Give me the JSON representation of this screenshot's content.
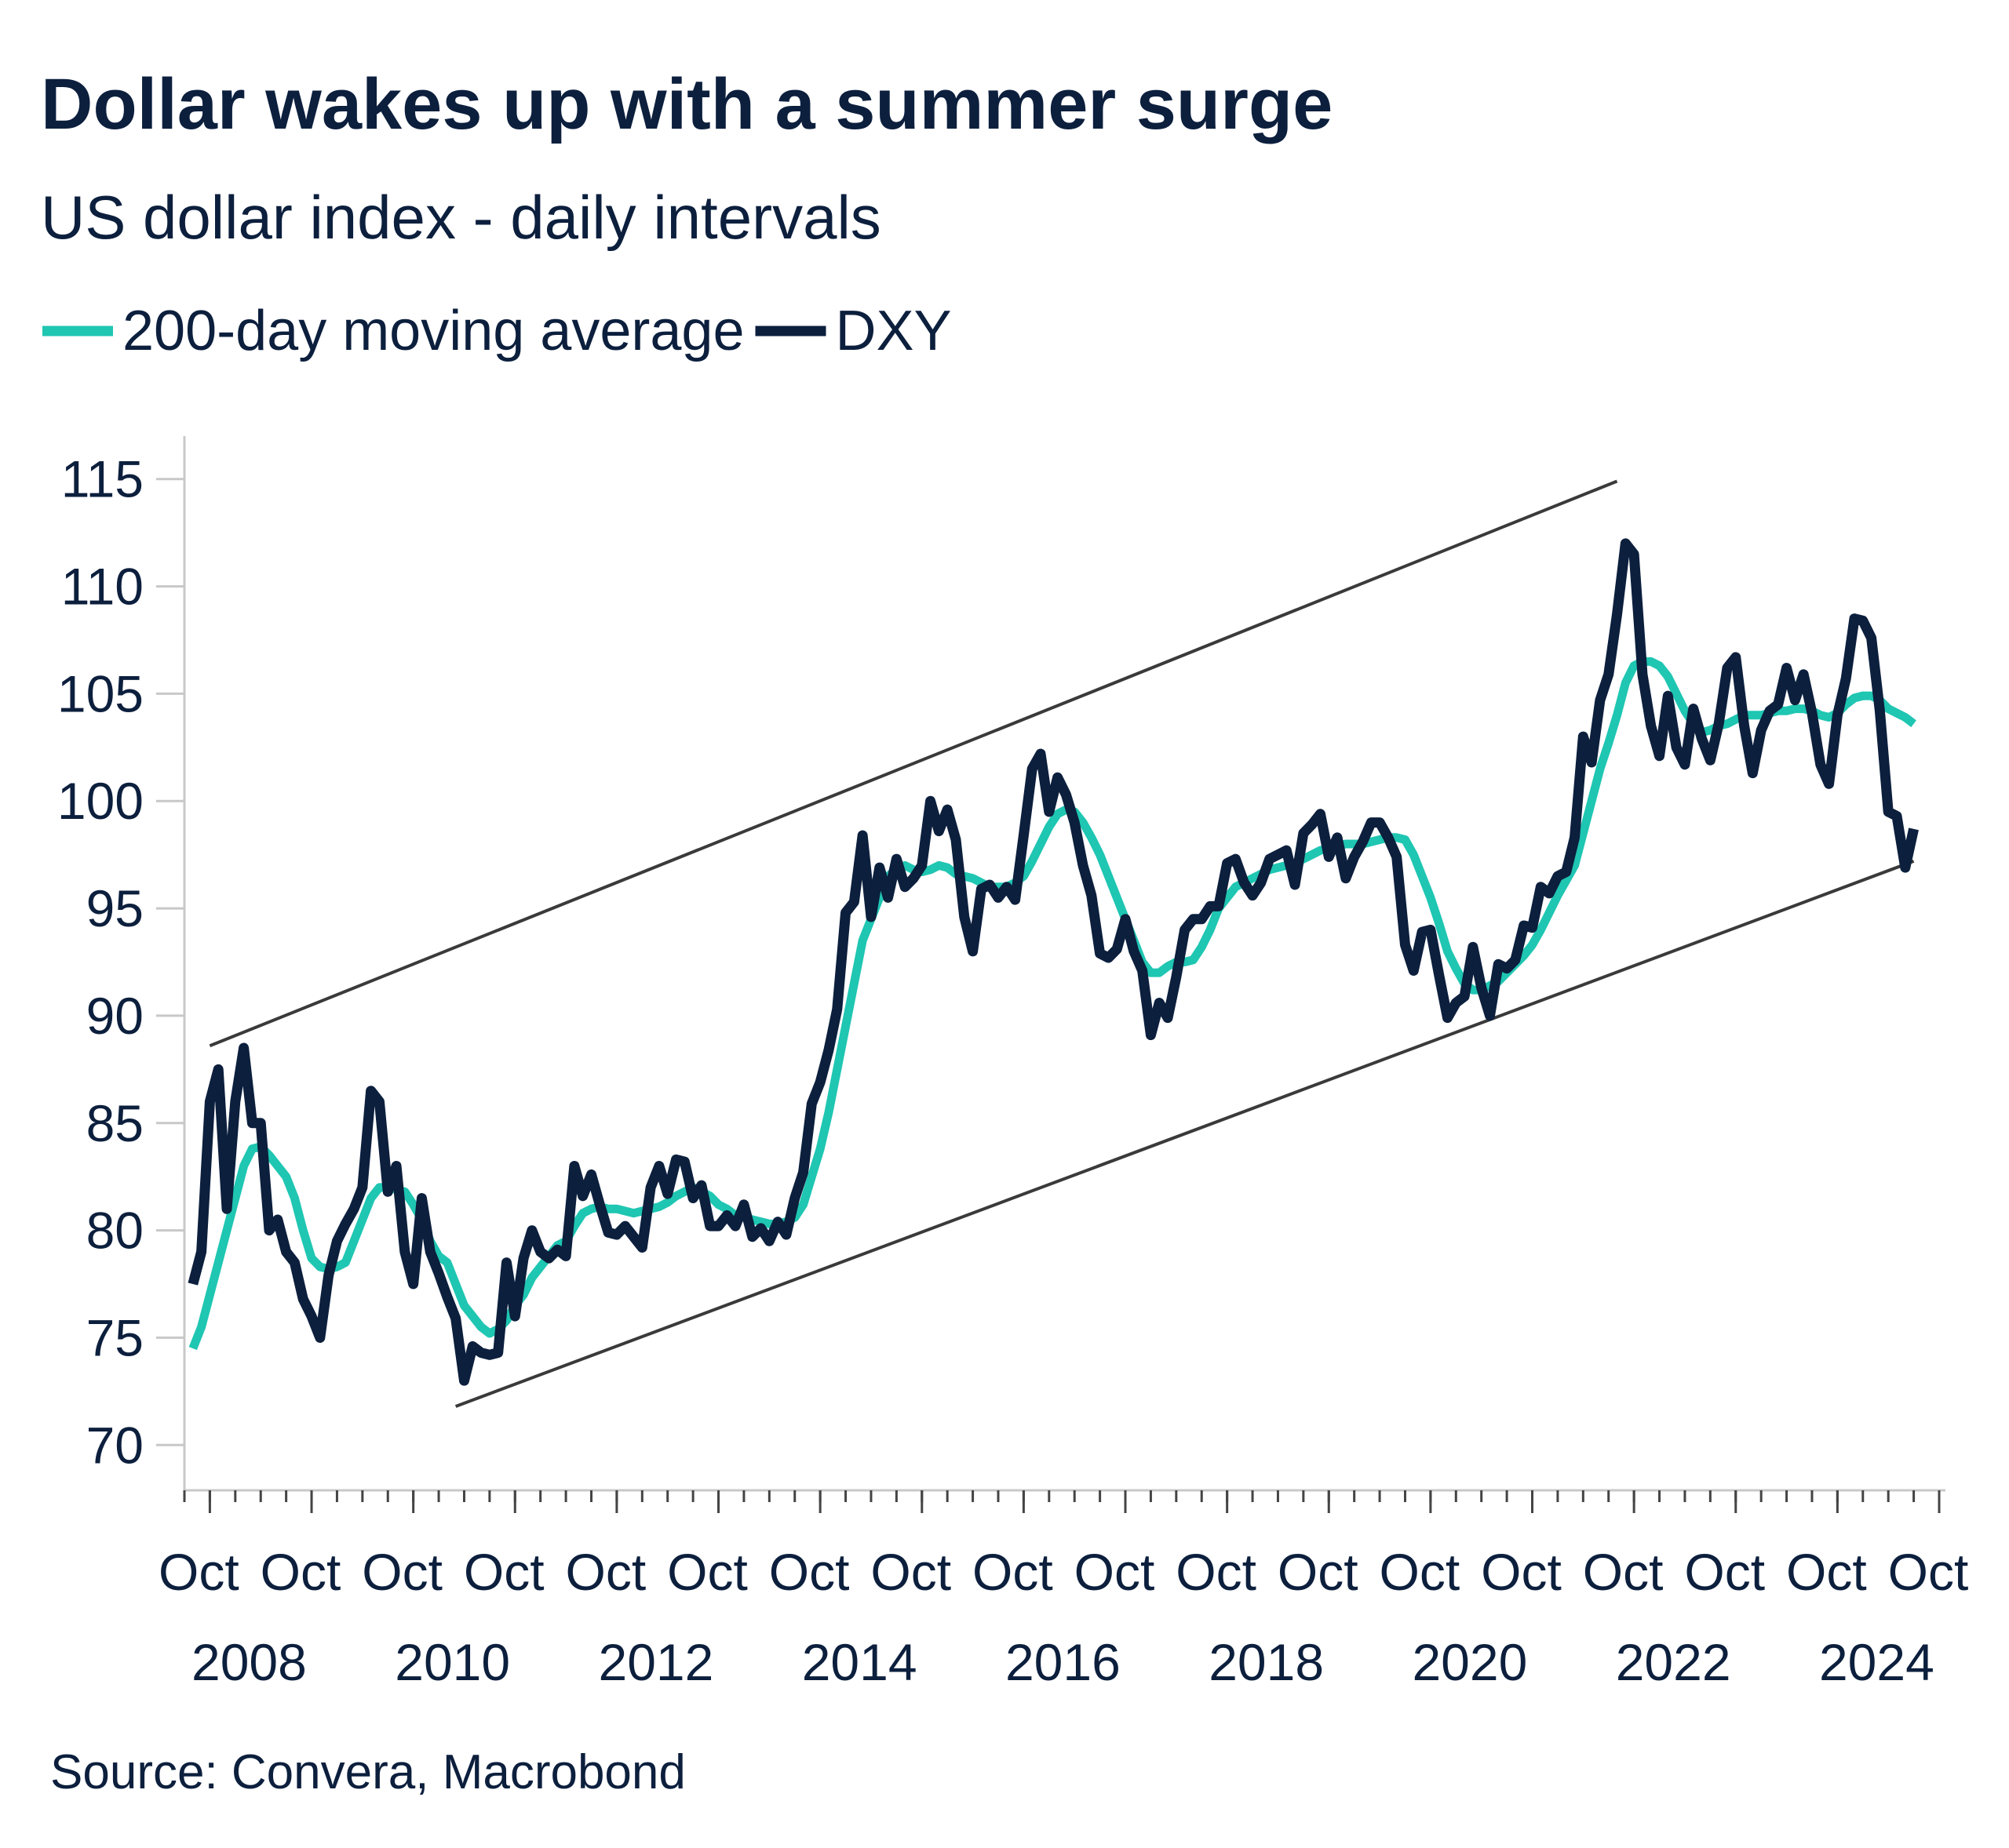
{
  "chart_data": {
    "type": "line",
    "title": "Dollar wakes up with a summer surge",
    "subtitle": "US dollar index - daily intervals",
    "source": "Source: Convera, Macrobond",
    "xlim": [
      "2008-07",
      "2025-10"
    ],
    "xticks": [
      {
        "value": "2008-10",
        "label": "Oct"
      },
      {
        "value": "2009-10",
        "label": "Oct"
      },
      {
        "value": "2010-10",
        "label": "Oct"
      },
      {
        "value": "2011-10",
        "label": "Oct"
      },
      {
        "value": "2012-10",
        "label": "Oct"
      },
      {
        "value": "2013-10",
        "label": "Oct"
      },
      {
        "value": "2014-10",
        "label": "Oct"
      },
      {
        "value": "2015-10",
        "label": "Oct"
      },
      {
        "value": "2016-10",
        "label": "Oct"
      },
      {
        "value": "2017-10",
        "label": "Oct"
      },
      {
        "value": "2018-10",
        "label": "Oct"
      },
      {
        "value": "2019-10",
        "label": "Oct"
      },
      {
        "value": "2020-10",
        "label": "Oct"
      },
      {
        "value": "2021-10",
        "label": "Oct"
      },
      {
        "value": "2022-10",
        "label": "Oct"
      },
      {
        "value": "2023-10",
        "label": "Oct"
      },
      {
        "value": "2024-10",
        "label": "Oct"
      },
      {
        "value": "2025-10",
        "label": "Oct"
      }
    ],
    "xtick_years": [
      2008,
      null,
      2010,
      null,
      2012,
      null,
      2014,
      null,
      2016,
      null,
      2018,
      null,
      2020,
      null,
      2022,
      null,
      2024,
      null
    ],
    "ylim": [
      68,
      117
    ],
    "yticks": [
      70,
      75,
      80,
      85,
      90,
      95,
      100,
      105,
      110,
      115
    ],
    "x": [
      "2008-08",
      "2008-09",
      "2008-10",
      "2008-11",
      "2008-12",
      "2009-01",
      "2009-02",
      "2009-03",
      "2009-04",
      "2009-05",
      "2009-06",
      "2009-07",
      "2009-08",
      "2009-09",
      "2009-10",
      "2009-11",
      "2009-12",
      "2010-01",
      "2010-02",
      "2010-03",
      "2010-04",
      "2010-05",
      "2010-06",
      "2010-07",
      "2010-08",
      "2010-09",
      "2010-10",
      "2010-11",
      "2010-12",
      "2011-01",
      "2011-02",
      "2011-03",
      "2011-04",
      "2011-05",
      "2011-06",
      "2011-07",
      "2011-08",
      "2011-09",
      "2011-10",
      "2011-11",
      "2011-12",
      "2012-01",
      "2012-02",
      "2012-03",
      "2012-04",
      "2012-05",
      "2012-06",
      "2012-07",
      "2012-08",
      "2012-09",
      "2012-10",
      "2012-11",
      "2012-12",
      "2013-01",
      "2013-02",
      "2013-03",
      "2013-04",
      "2013-05",
      "2013-06",
      "2013-07",
      "2013-08",
      "2013-09",
      "2013-10",
      "2013-11",
      "2013-12",
      "2014-01",
      "2014-02",
      "2014-03",
      "2014-04",
      "2014-05",
      "2014-06",
      "2014-07",
      "2014-08",
      "2014-09",
      "2014-10",
      "2014-11",
      "2014-12",
      "2015-01",
      "2015-02",
      "2015-03",
      "2015-04",
      "2015-05",
      "2015-06",
      "2015-07",
      "2015-08",
      "2015-09",
      "2015-10",
      "2015-11",
      "2015-12",
      "2016-01",
      "2016-02",
      "2016-03",
      "2016-04",
      "2016-05",
      "2016-06",
      "2016-07",
      "2016-08",
      "2016-09",
      "2016-10",
      "2016-11",
      "2016-12",
      "2017-01",
      "2017-02",
      "2017-03",
      "2017-04",
      "2017-05",
      "2017-06",
      "2017-07",
      "2017-08",
      "2017-09",
      "2017-10",
      "2017-11",
      "2017-12",
      "2018-01",
      "2018-02",
      "2018-03",
      "2018-04",
      "2018-05",
      "2018-06",
      "2018-07",
      "2018-08",
      "2018-09",
      "2018-10",
      "2018-11",
      "2018-12",
      "2019-01",
      "2019-02",
      "2019-03",
      "2019-04",
      "2019-05",
      "2019-06",
      "2019-07",
      "2019-08",
      "2019-09",
      "2019-10",
      "2019-11",
      "2019-12",
      "2020-01",
      "2020-02",
      "2020-03",
      "2020-04",
      "2020-05",
      "2020-06",
      "2020-07",
      "2020-08",
      "2020-09",
      "2020-10",
      "2020-11",
      "2020-12",
      "2021-01",
      "2021-02",
      "2021-03",
      "2021-04",
      "2021-05",
      "2021-06",
      "2021-07",
      "2021-08",
      "2021-09",
      "2021-10",
      "2021-11",
      "2021-12",
      "2022-01",
      "2022-02",
      "2022-03",
      "2022-04",
      "2022-05",
      "2022-06",
      "2022-07",
      "2022-08",
      "2022-09",
      "2022-10",
      "2022-11",
      "2022-12",
      "2023-01",
      "2023-02",
      "2023-03",
      "2023-04",
      "2023-05",
      "2023-06",
      "2023-07",
      "2023-08",
      "2023-09",
      "2023-10",
      "2023-11",
      "2023-12",
      "2024-01",
      "2024-02",
      "2024-03",
      "2024-04",
      "2024-05",
      "2024-06",
      "2024-07",
      "2024-08",
      "2024-09",
      "2024-10",
      "2024-11",
      "2024-12",
      "2025-01",
      "2025-02",
      "2025-03",
      "2025-04",
      "2025-05",
      "2025-06",
      "2025-07"
    ],
    "series": [
      {
        "name": "200-day moving average",
        "color": "#1fc6b2",
        "values": [
          74.5,
          75.5,
          77,
          78.5,
          80,
          81.5,
          83,
          83.8,
          83.9,
          83.5,
          83,
          82.5,
          81.5,
          80,
          78.7,
          78.3,
          78.2,
          78.3,
          78.5,
          79.5,
          80.5,
          81.5,
          82,
          82,
          81.9,
          81.8,
          81.2,
          80.5,
          79.5,
          78.8,
          78.5,
          77.5,
          76.5,
          76,
          75.5,
          75.2,
          75.4,
          75.8,
          76.5,
          77,
          77.8,
          78.3,
          78.8,
          79.3,
          79.5,
          80.2,
          80.8,
          81,
          81.1,
          81,
          81,
          80.9,
          80.8,
          80.9,
          81,
          81.1,
          81.3,
          81.6,
          81.8,
          82,
          81.8,
          81.6,
          81.2,
          81,
          80.7,
          80.6,
          80.5,
          80.4,
          80.3,
          80.3,
          80.4,
          80.6,
          81.2,
          82.5,
          83.8,
          85.5,
          87.5,
          89.5,
          91.5,
          93.5,
          94.5,
          95.5,
          96.5,
          96.8,
          97,
          96.8,
          96.7,
          96.8,
          97,
          96.9,
          96.6,
          96.5,
          96.4,
          96.2,
          96,
          96,
          96,
          96.2,
          96.5,
          97.2,
          98,
          98.8,
          99.4,
          99.6,
          99.5,
          99,
          98.3,
          97.5,
          96.5,
          95.5,
          94.5,
          93.5,
          92.5,
          92,
          92,
          92.3,
          92.5,
          92.5,
          92.6,
          93.2,
          94,
          95,
          95.5,
          96,
          96.2,
          96.4,
          96.6,
          96.8,
          96.9,
          97,
          97.1,
          97.3,
          97.5,
          97.7,
          97.8,
          97.9,
          98,
          98,
          98,
          98.1,
          98.2,
          98.3,
          98.3,
          98.2,
          97.5,
          96.5,
          95.5,
          94.3,
          93,
          92.2,
          91.5,
          91.2,
          91.2,
          91.4,
          91.6,
          92,
          92.4,
          92.8,
          93.3,
          94,
          94.8,
          95.6,
          96.3,
          97,
          98.5,
          100,
          101.5,
          102.7,
          104,
          105.5,
          106.3,
          106.5,
          106.5,
          106.3,
          105.8,
          105,
          104.2,
          103.6,
          103.2,
          103.3,
          103.5,
          103.6,
          103.8,
          104,
          104,
          104,
          104.1,
          104.2,
          104.2,
          104.3,
          104.3,
          104.2,
          104,
          103.9,
          104.1,
          104.5,
          104.8,
          104.9,
          104.9,
          104.7,
          104.3,
          104.1,
          103.9,
          103.6
        ]
      },
      {
        "name": "DXY",
        "color": "#0c1f3d",
        "values": [
          77.5,
          79,
          86,
          87.5,
          81,
          86,
          88.5,
          85,
          85,
          80,
          80.5,
          79,
          78.5,
          76.8,
          76,
          75,
          77.9,
          79.5,
          80.3,
          81,
          82,
          86.5,
          86,
          81.8,
          83,
          79,
          77.5,
          81.5,
          79,
          78,
          76.9,
          75.9,
          73,
          74.6,
          74.3,
          74.2,
          74.3,
          78.5,
          76,
          78.7,
          80,
          79,
          78.7,
          79.1,
          78.8,
          83,
          81.6,
          82.6,
          81.2,
          79.9,
          79.8,
          80.2,
          79.7,
          79.2,
          82,
          83,
          81.7,
          83.3,
          83.2,
          81.5,
          82.1,
          80.2,
          80.2,
          80.7,
          80.2,
          81.2,
          79.7,
          80.1,
          79.5,
          80.4,
          79.8,
          81.5,
          82.7,
          85.9,
          86.9,
          88.4,
          90.3,
          94.8,
          95.3,
          98.4,
          94.6,
          96.9,
          95.5,
          97.3,
          96,
          96.4,
          97,
          100,
          98.6,
          99.6,
          98.2,
          94.6,
          93,
          95.9,
          96.1,
          95.5,
          96,
          95.4,
          98.4,
          101.5,
          102.2,
          99.5,
          101.1,
          100.3,
          99,
          97,
          95.6,
          92.9,
          92.7,
          93.1,
          94.5,
          93,
          92.1,
          89.1,
          90.6,
          89.9,
          91.8,
          94,
          94.5,
          94.5,
          95.1,
          95.1,
          97.1,
          97.3,
          96.2,
          95.6,
          96.2,
          97.3,
          97.5,
          97.7,
          96.1,
          98.5,
          98.9,
          99.4,
          97.4,
          98.3,
          96.4,
          97.4,
          98.1,
          99,
          99,
          98.3,
          97.4,
          93.3,
          92.1,
          93.9,
          94,
          91.9,
          89.9,
          90.6,
          90.9,
          93.2,
          91.3,
          90,
          92.4,
          92.2,
          92.6,
          94.2,
          94.1,
          96,
          95.7,
          96.5,
          96.7,
          98.3,
          103,
          101.8,
          104.7,
          105.9,
          108.7,
          112,
          111.5,
          105.9,
          103.5,
          102.1,
          104.9,
          102.5,
          101.7,
          104.3,
          102.9,
          101.9,
          103.6,
          106.2,
          106.7,
          103.5,
          101.3,
          103.3,
          104.2,
          104.5,
          106.2,
          104.7,
          105.9,
          104.1,
          101.7,
          100.8,
          104,
          105.7,
          108.5,
          108.4,
          107.6,
          104.2,
          99.5,
          99.3,
          96.9,
          98.7
        ]
      }
    ],
    "channel_lines": [
      {
        "x": [
          "2008-10",
          "2022-08"
        ],
        "y": [
          88.6,
          114.9
        ],
        "color": "#3a3a3a"
      },
      {
        "x": [
          "2011-03",
          "2025-07"
        ],
        "y": [
          71.8,
          97.2
        ],
        "color": "#3a3a3a"
      }
    ]
  }
}
